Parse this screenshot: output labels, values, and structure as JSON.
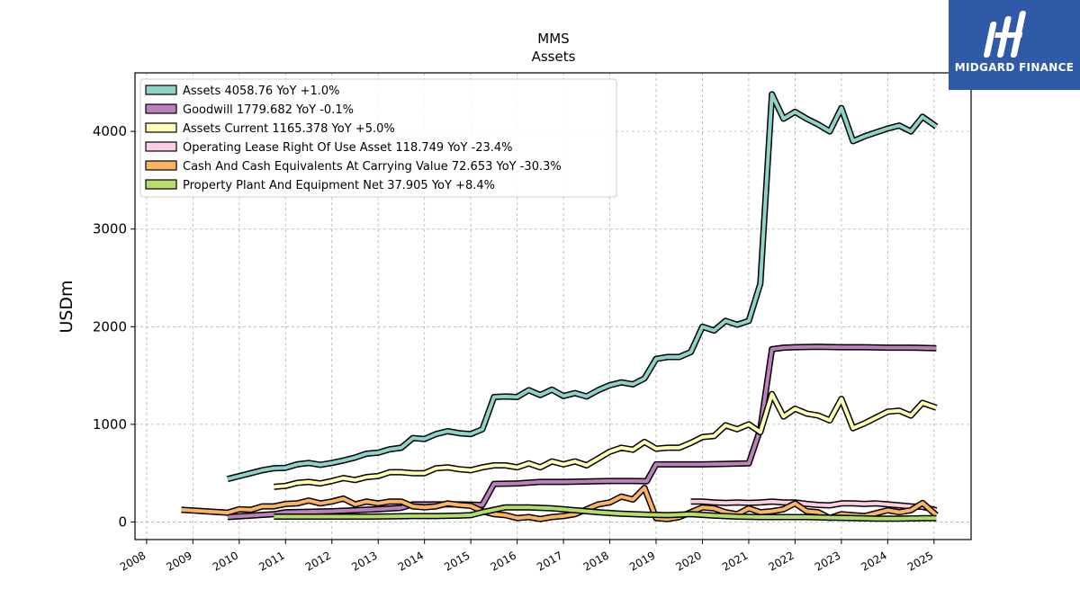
{
  "chart_data": {
    "type": "line",
    "title": "MMS",
    "subtitle": "Assets",
    "xlabel": "",
    "ylabel": "USDm",
    "xlim": [
      2007.75,
      2025.8
    ],
    "ylim": [
      -180,
      4600
    ],
    "x_ticks": [
      "2008",
      "2009",
      "2010",
      "2011",
      "2012",
      "2013",
      "2014",
      "2015",
      "2016",
      "2017",
      "2018",
      "2019",
      "2020",
      "2021",
      "2022",
      "2023",
      "2024",
      "2025"
    ],
    "y_ticks": [
      "0",
      "1000",
      "2000",
      "3000",
      "4000"
    ],
    "grid": true,
    "legend_position": "top-left",
    "series": [
      {
        "name": "Assets",
        "legend": "Assets  4058.76 YoY +1.0%",
        "color": "#8dd3c7",
        "points": [
          [
            2009.75,
            440
          ],
          [
            2010.0,
            470
          ],
          [
            2010.25,
            500
          ],
          [
            2010.5,
            530
          ],
          [
            2010.75,
            550
          ],
          [
            2011.0,
            555
          ],
          [
            2011.25,
            590
          ],
          [
            2011.5,
            605
          ],
          [
            2011.75,
            585
          ],
          [
            2012.0,
            605
          ],
          [
            2012.25,
            630
          ],
          [
            2012.5,
            660
          ],
          [
            2012.75,
            700
          ],
          [
            2013.0,
            710
          ],
          [
            2013.25,
            745
          ],
          [
            2013.5,
            760
          ],
          [
            2013.75,
            860
          ],
          [
            2014.0,
            850
          ],
          [
            2014.25,
            900
          ],
          [
            2014.5,
            930
          ],
          [
            2014.75,
            910
          ],
          [
            2015.0,
            900
          ],
          [
            2015.25,
            950
          ],
          [
            2015.5,
            1280
          ],
          [
            2015.75,
            1285
          ],
          [
            2016.0,
            1280
          ],
          [
            2016.25,
            1350
          ],
          [
            2016.5,
            1300
          ],
          [
            2016.75,
            1355
          ],
          [
            2017.0,
            1290
          ],
          [
            2017.25,
            1320
          ],
          [
            2017.5,
            1285
          ],
          [
            2017.75,
            1350
          ],
          [
            2018.0,
            1400
          ],
          [
            2018.25,
            1430
          ],
          [
            2018.5,
            1410
          ],
          [
            2018.75,
            1470
          ],
          [
            2019.0,
            1670
          ],
          [
            2019.25,
            1690
          ],
          [
            2019.5,
            1690
          ],
          [
            2019.75,
            1740
          ],
          [
            2020.0,
            2000
          ],
          [
            2020.25,
            1960
          ],
          [
            2020.5,
            2060
          ],
          [
            2020.75,
            2020
          ],
          [
            2021.0,
            2060
          ],
          [
            2021.25,
            2440
          ],
          [
            2021.5,
            4380
          ],
          [
            2021.75,
            4130
          ],
          [
            2022.0,
            4200
          ],
          [
            2022.25,
            4130
          ],
          [
            2022.5,
            4070
          ],
          [
            2022.75,
            4000
          ],
          [
            2023.0,
            4240
          ],
          [
            2023.25,
            3900
          ],
          [
            2023.5,
            3950
          ],
          [
            2023.75,
            3990
          ],
          [
            2024.0,
            4030
          ],
          [
            2024.25,
            4060
          ],
          [
            2024.5,
            4000
          ],
          [
            2024.75,
            4150
          ],
          [
            2025.05,
            4050
          ]
        ]
      },
      {
        "name": "Goodwill",
        "legend": "Goodwill  1779.682 YoY -0.1%",
        "color": "#bc80bd",
        "points": [
          [
            2009.75,
            50
          ],
          [
            2010.25,
            65
          ],
          [
            2010.75,
            80
          ],
          [
            2011.0,
            100
          ],
          [
            2011.5,
            105
          ],
          [
            2012.0,
            110
          ],
          [
            2012.5,
            120
          ],
          [
            2013.0,
            130
          ],
          [
            2013.5,
            145
          ],
          [
            2013.75,
            180
          ],
          [
            2014.25,
            180
          ],
          [
            2014.75,
            180
          ],
          [
            2015.25,
            175
          ],
          [
            2015.5,
            390
          ],
          [
            2016.0,
            395
          ],
          [
            2016.5,
            410
          ],
          [
            2017.0,
            410
          ],
          [
            2017.5,
            415
          ],
          [
            2018.0,
            420
          ],
          [
            2018.5,
            420
          ],
          [
            2018.8,
            418
          ],
          [
            2019.0,
            590
          ],
          [
            2019.5,
            590
          ],
          [
            2020.0,
            590
          ],
          [
            2020.5,
            595
          ],
          [
            2021.0,
            600
          ],
          [
            2021.25,
            950
          ],
          [
            2021.5,
            1770
          ],
          [
            2021.75,
            1785
          ],
          [
            2022.0,
            1790
          ],
          [
            2022.5,
            1795
          ],
          [
            2023.0,
            1790
          ],
          [
            2023.5,
            1790
          ],
          [
            2024.0,
            1785
          ],
          [
            2024.5,
            1785
          ],
          [
            2025.05,
            1780
          ]
        ]
      },
      {
        "name": "Assets Current",
        "legend": "Assets Current  1165.378 YoY +5.0%",
        "color": "#ffffb3",
        "points": [
          [
            2010.75,
            360
          ],
          [
            2011.0,
            370
          ],
          [
            2011.25,
            400
          ],
          [
            2011.5,
            410
          ],
          [
            2011.75,
            395
          ],
          [
            2012.0,
            420
          ],
          [
            2012.25,
            450
          ],
          [
            2012.5,
            430
          ],
          [
            2012.75,
            460
          ],
          [
            2013.0,
            470
          ],
          [
            2013.25,
            510
          ],
          [
            2013.5,
            510
          ],
          [
            2013.75,
            500
          ],
          [
            2014.0,
            500
          ],
          [
            2014.25,
            550
          ],
          [
            2014.5,
            560
          ],
          [
            2014.75,
            540
          ],
          [
            2015.0,
            530
          ],
          [
            2015.25,
            560
          ],
          [
            2015.5,
            580
          ],
          [
            2015.75,
            580
          ],
          [
            2016.0,
            560
          ],
          [
            2016.25,
            600
          ],
          [
            2016.5,
            560
          ],
          [
            2016.75,
            620
          ],
          [
            2017.0,
            590
          ],
          [
            2017.25,
            620
          ],
          [
            2017.5,
            580
          ],
          [
            2017.75,
            650
          ],
          [
            2018.0,
            720
          ],
          [
            2018.25,
            760
          ],
          [
            2018.5,
            740
          ],
          [
            2018.75,
            820
          ],
          [
            2019.0,
            750
          ],
          [
            2019.25,
            760
          ],
          [
            2019.5,
            760
          ],
          [
            2019.75,
            810
          ],
          [
            2020.0,
            870
          ],
          [
            2020.25,
            880
          ],
          [
            2020.5,
            990
          ],
          [
            2020.75,
            950
          ],
          [
            2021.0,
            1000
          ],
          [
            2021.25,
            920
          ],
          [
            2021.5,
            1310
          ],
          [
            2021.75,
            1080
          ],
          [
            2022.0,
            1160
          ],
          [
            2022.25,
            1110
          ],
          [
            2022.5,
            1090
          ],
          [
            2022.75,
            1040
          ],
          [
            2023.0,
            1260
          ],
          [
            2023.25,
            960
          ],
          [
            2023.5,
            1010
          ],
          [
            2023.75,
            1070
          ],
          [
            2024.0,
            1130
          ],
          [
            2024.25,
            1140
          ],
          [
            2024.5,
            1090
          ],
          [
            2024.75,
            1220
          ],
          [
            2025.05,
            1170
          ]
        ]
      },
      {
        "name": "Operating Lease Right Of Use Asset",
        "legend": "Operating Lease Right Of Use Asset  118.749 YoY -23.4%",
        "color": "#fccde5",
        "points": [
          [
            2019.75,
            210
          ],
          [
            2020.0,
            210
          ],
          [
            2020.25,
            200
          ],
          [
            2020.5,
            195
          ],
          [
            2020.75,
            200
          ],
          [
            2021.0,
            195
          ],
          [
            2021.25,
            200
          ],
          [
            2021.5,
            210
          ],
          [
            2021.75,
            200
          ],
          [
            2022.0,
            200
          ],
          [
            2022.25,
            185
          ],
          [
            2022.5,
            175
          ],
          [
            2022.75,
            170
          ],
          [
            2023.0,
            190
          ],
          [
            2023.25,
            190
          ],
          [
            2023.5,
            185
          ],
          [
            2023.75,
            190
          ],
          [
            2024.0,
            180
          ],
          [
            2024.25,
            170
          ],
          [
            2024.5,
            160
          ],
          [
            2024.75,
            155
          ],
          [
            2025.05,
            120
          ]
        ]
      },
      {
        "name": "Cash And Cash Equivalents At Carrying Value",
        "legend": "Cash And Cash Equivalents At Carrying Value  72.653 YoY -30.3%",
        "color": "#fdb462",
        "points": [
          [
            2008.75,
            125
          ],
          [
            2009.25,
            110
          ],
          [
            2009.75,
            95
          ],
          [
            2010.0,
            130
          ],
          [
            2010.25,
            125
          ],
          [
            2010.5,
            160
          ],
          [
            2010.75,
            160
          ],
          [
            2011.0,
            185
          ],
          [
            2011.25,
            190
          ],
          [
            2011.5,
            220
          ],
          [
            2011.75,
            190
          ],
          [
            2012.0,
            210
          ],
          [
            2012.25,
            240
          ],
          [
            2012.5,
            180
          ],
          [
            2012.75,
            210
          ],
          [
            2013.0,
            190
          ],
          [
            2013.25,
            210
          ],
          [
            2013.5,
            210
          ],
          [
            2013.75,
            160
          ],
          [
            2014.0,
            150
          ],
          [
            2014.25,
            160
          ],
          [
            2014.5,
            190
          ],
          [
            2014.75,
            175
          ],
          [
            2015.0,
            165
          ],
          [
            2015.25,
            110
          ],
          [
            2015.5,
            80
          ],
          [
            2015.75,
            70
          ],
          [
            2016.0,
            40
          ],
          [
            2016.25,
            50
          ],
          [
            2016.5,
            30
          ],
          [
            2016.75,
            50
          ],
          [
            2017.0,
            60
          ],
          [
            2017.25,
            80
          ],
          [
            2017.5,
            130
          ],
          [
            2017.75,
            180
          ],
          [
            2018.0,
            200
          ],
          [
            2018.25,
            260
          ],
          [
            2018.5,
            230
          ],
          [
            2018.75,
            350
          ],
          [
            2019.0,
            40
          ],
          [
            2019.25,
            30
          ],
          [
            2019.5,
            50
          ],
          [
            2019.75,
            100
          ],
          [
            2020.0,
            150
          ],
          [
            2020.25,
            140
          ],
          [
            2020.5,
            100
          ],
          [
            2020.75,
            80
          ],
          [
            2021.0,
            140
          ],
          [
            2021.25,
            100
          ],
          [
            2021.5,
            110
          ],
          [
            2021.75,
            130
          ],
          [
            2022.0,
            190
          ],
          [
            2022.25,
            110
          ],
          [
            2022.5,
            100
          ],
          [
            2022.75,
            40
          ],
          [
            2023.0,
            80
          ],
          [
            2023.25,
            70
          ],
          [
            2023.5,
            60
          ],
          [
            2023.75,
            90
          ],
          [
            2024.0,
            120
          ],
          [
            2024.25,
            100
          ],
          [
            2024.5,
            120
          ],
          [
            2024.75,
            195
          ],
          [
            2025.05,
            70
          ]
        ]
      },
      {
        "name": "Property Plant And Equipment Net",
        "legend": "Property Plant And Equipment Net  37.905 YoY +8.4%",
        "color": "#b3de69",
        "points": [
          [
            2010.75,
            55
          ],
          [
            2011.25,
            55
          ],
          [
            2011.75,
            55
          ],
          [
            2012.25,
            55
          ],
          [
            2012.75,
            55
          ],
          [
            2013.25,
            58
          ],
          [
            2013.75,
            60
          ],
          [
            2014.25,
            60
          ],
          [
            2014.75,
            65
          ],
          [
            2015.0,
            70
          ],
          [
            2015.25,
            100
          ],
          [
            2015.75,
            150
          ],
          [
            2016.25,
            150
          ],
          [
            2016.75,
            140
          ],
          [
            2017.25,
            120
          ],
          [
            2017.75,
            100
          ],
          [
            2018.25,
            85
          ],
          [
            2018.75,
            75
          ],
          [
            2019.25,
            70
          ],
          [
            2019.75,
            80
          ],
          [
            2020.25,
            65
          ],
          [
            2020.75,
            55
          ],
          [
            2021.25,
            50
          ],
          [
            2021.75,
            50
          ],
          [
            2022.25,
            50
          ],
          [
            2022.75,
            45
          ],
          [
            2023.25,
            40
          ],
          [
            2023.75,
            35
          ],
          [
            2024.25,
            35
          ],
          [
            2024.75,
            38
          ],
          [
            2025.05,
            38
          ]
        ]
      }
    ]
  },
  "logo": {
    "name": "MIDGARD FINANCE"
  }
}
